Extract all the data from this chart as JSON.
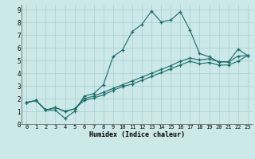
{
  "xlabel": "Humidex (Indice chaleur)",
  "bg_color": "#cce8e8",
  "line_color": "#1a6b6b",
  "grid_color": "#aacfcf",
  "xlim": [
    -0.5,
    23.5
  ],
  "ylim": [
    0,
    9.4
  ],
  "xticks": [
    0,
    1,
    2,
    3,
    4,
    5,
    6,
    7,
    8,
    9,
    10,
    11,
    12,
    13,
    14,
    15,
    16,
    17,
    18,
    19,
    20,
    21,
    22,
    23
  ],
  "yticks": [
    0,
    1,
    2,
    3,
    4,
    5,
    6,
    7,
    8,
    9
  ],
  "line1_x": [
    0,
    1,
    2,
    3,
    4,
    5,
    6,
    7,
    8,
    9,
    10,
    11,
    12,
    13,
    14,
    15,
    16,
    17,
    18,
    19,
    20,
    21,
    22,
    23
  ],
  "line1_y": [
    1.7,
    1.85,
    1.1,
    1.1,
    0.45,
    1.0,
    2.2,
    2.4,
    3.1,
    5.3,
    5.85,
    7.3,
    7.85,
    8.9,
    8.05,
    8.2,
    8.85,
    7.4,
    5.55,
    5.3,
    4.9,
    4.9,
    5.9,
    5.4
  ],
  "line2_x": [
    0,
    1,
    2,
    3,
    4,
    5,
    6,
    7,
    8,
    9,
    10,
    11,
    12,
    13,
    14,
    15,
    16,
    17,
    18,
    19,
    20,
    21,
    22,
    23
  ],
  "line2_y": [
    1.7,
    1.85,
    1.1,
    1.3,
    1.0,
    1.2,
    2.0,
    2.2,
    2.5,
    2.8,
    3.1,
    3.4,
    3.7,
    4.0,
    4.3,
    4.6,
    4.95,
    5.2,
    5.05,
    5.15,
    4.9,
    4.9,
    5.35,
    5.4
  ],
  "line3_x": [
    0,
    1,
    2,
    3,
    4,
    5,
    6,
    7,
    8,
    9,
    10,
    11,
    12,
    13,
    14,
    15,
    16,
    17,
    18,
    19,
    20,
    21,
    22,
    23
  ],
  "line3_y": [
    1.7,
    1.85,
    1.1,
    1.3,
    1.0,
    1.2,
    1.85,
    2.05,
    2.3,
    2.65,
    2.95,
    3.15,
    3.45,
    3.75,
    4.05,
    4.35,
    4.65,
    4.95,
    4.75,
    4.85,
    4.65,
    4.65,
    4.95,
    5.4
  ]
}
